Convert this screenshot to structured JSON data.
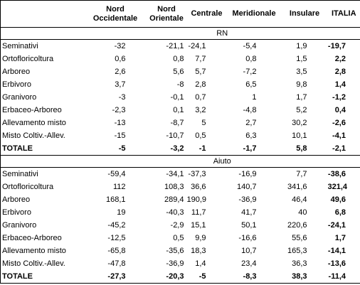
{
  "table": {
    "columns": [
      "Nord Occidentale",
      "Nord Orientale",
      "Centrale",
      "Meridionale",
      "Insulare",
      "ITALIA"
    ],
    "sections": [
      {
        "title": "RN",
        "rows": [
          {
            "label": "Seminativi",
            "values": [
              "-32",
              "-21,1",
              "-24,1",
              "-5,4",
              "1,9",
              "-19,7"
            ]
          },
          {
            "label": "Ortofloricoltura",
            "values": [
              "0,6",
              "0,8",
              "7,7",
              "0,8",
              "1,5",
              "2,2"
            ]
          },
          {
            "label": "Arboreo",
            "values": [
              "2,6",
              "5,6",
              "5,7",
              "-7,2",
              "3,5",
              "2,8"
            ]
          },
          {
            "label": "Erbivoro",
            "values": [
              "3,7",
              "-8",
              "2,8",
              "6,5",
              "9,8",
              "1,4"
            ]
          },
          {
            "label": "Granivoro",
            "values": [
              "-3",
              "-0,1",
              "0,7",
              "1",
              "1,7",
              "-1,2"
            ]
          },
          {
            "label": "Erbaceo-Arboreo",
            "values": [
              "-2,3",
              "0,1",
              "3,2",
              "-4,8",
              "5,2",
              "0,4"
            ]
          },
          {
            "label": "Allevamento misto",
            "values": [
              "-13",
              "-8,7",
              "5",
              "2,7",
              "30,2",
              "-2,6"
            ]
          },
          {
            "label": "Misto Coltiv.-Allev.",
            "values": [
              "-15",
              "-10,7",
              "0,5",
              "6,3",
              "10,1",
              "-4,1"
            ]
          },
          {
            "label": "TOTALE",
            "values": [
              "-5",
              "-3,2",
              "-1",
              "-1,7",
              "5,8",
              "-2,1"
            ]
          }
        ]
      },
      {
        "title": "Aiuto",
        "rows": [
          {
            "label": "Seminativi",
            "values": [
              "-59,4",
              "-34,1",
              "-37,3",
              "-16,9",
              "7,7",
              "-38,6"
            ]
          },
          {
            "label": "Ortofloricoltura",
            "values": [
              "112",
              "108,3",
              "36,6",
              "140,7",
              "341,6",
              "321,4"
            ]
          },
          {
            "label": "Arboreo",
            "values": [
              "168,1",
              "289,4",
              "190,9",
              "-36,9",
              "46,4",
              "49,6"
            ]
          },
          {
            "label": "Erbivoro",
            "values": [
              "19",
              "-40,3",
              "11,7",
              "41,7",
              "40",
              "6,8"
            ]
          },
          {
            "label": "Granivoro",
            "values": [
              "-45,2",
              "-2,9",
              "15,1",
              "50,1",
              "220,6",
              "-24,1"
            ]
          },
          {
            "label": "Erbaceo-Arboreo",
            "values": [
              "-12,5",
              "0,5",
              "9,9",
              "-16,6",
              "55,6",
              "1,7"
            ]
          },
          {
            "label": "Allevamento misto",
            "values": [
              "-65,8",
              "-35,6",
              "18,3",
              "10,7",
              "165,3",
              "-14,1"
            ]
          },
          {
            "label": "Misto Coltiv.-Allev.",
            "values": [
              "-47,8",
              "-36,9",
              "1,4",
              "23,4",
              "36,3",
              "-13,6"
            ]
          },
          {
            "label": "TOTALE",
            "values": [
              "-27,3",
              "-20,3",
              "-5",
              "-8,3",
              "38,3",
              "-11,4"
            ]
          }
        ]
      }
    ]
  }
}
